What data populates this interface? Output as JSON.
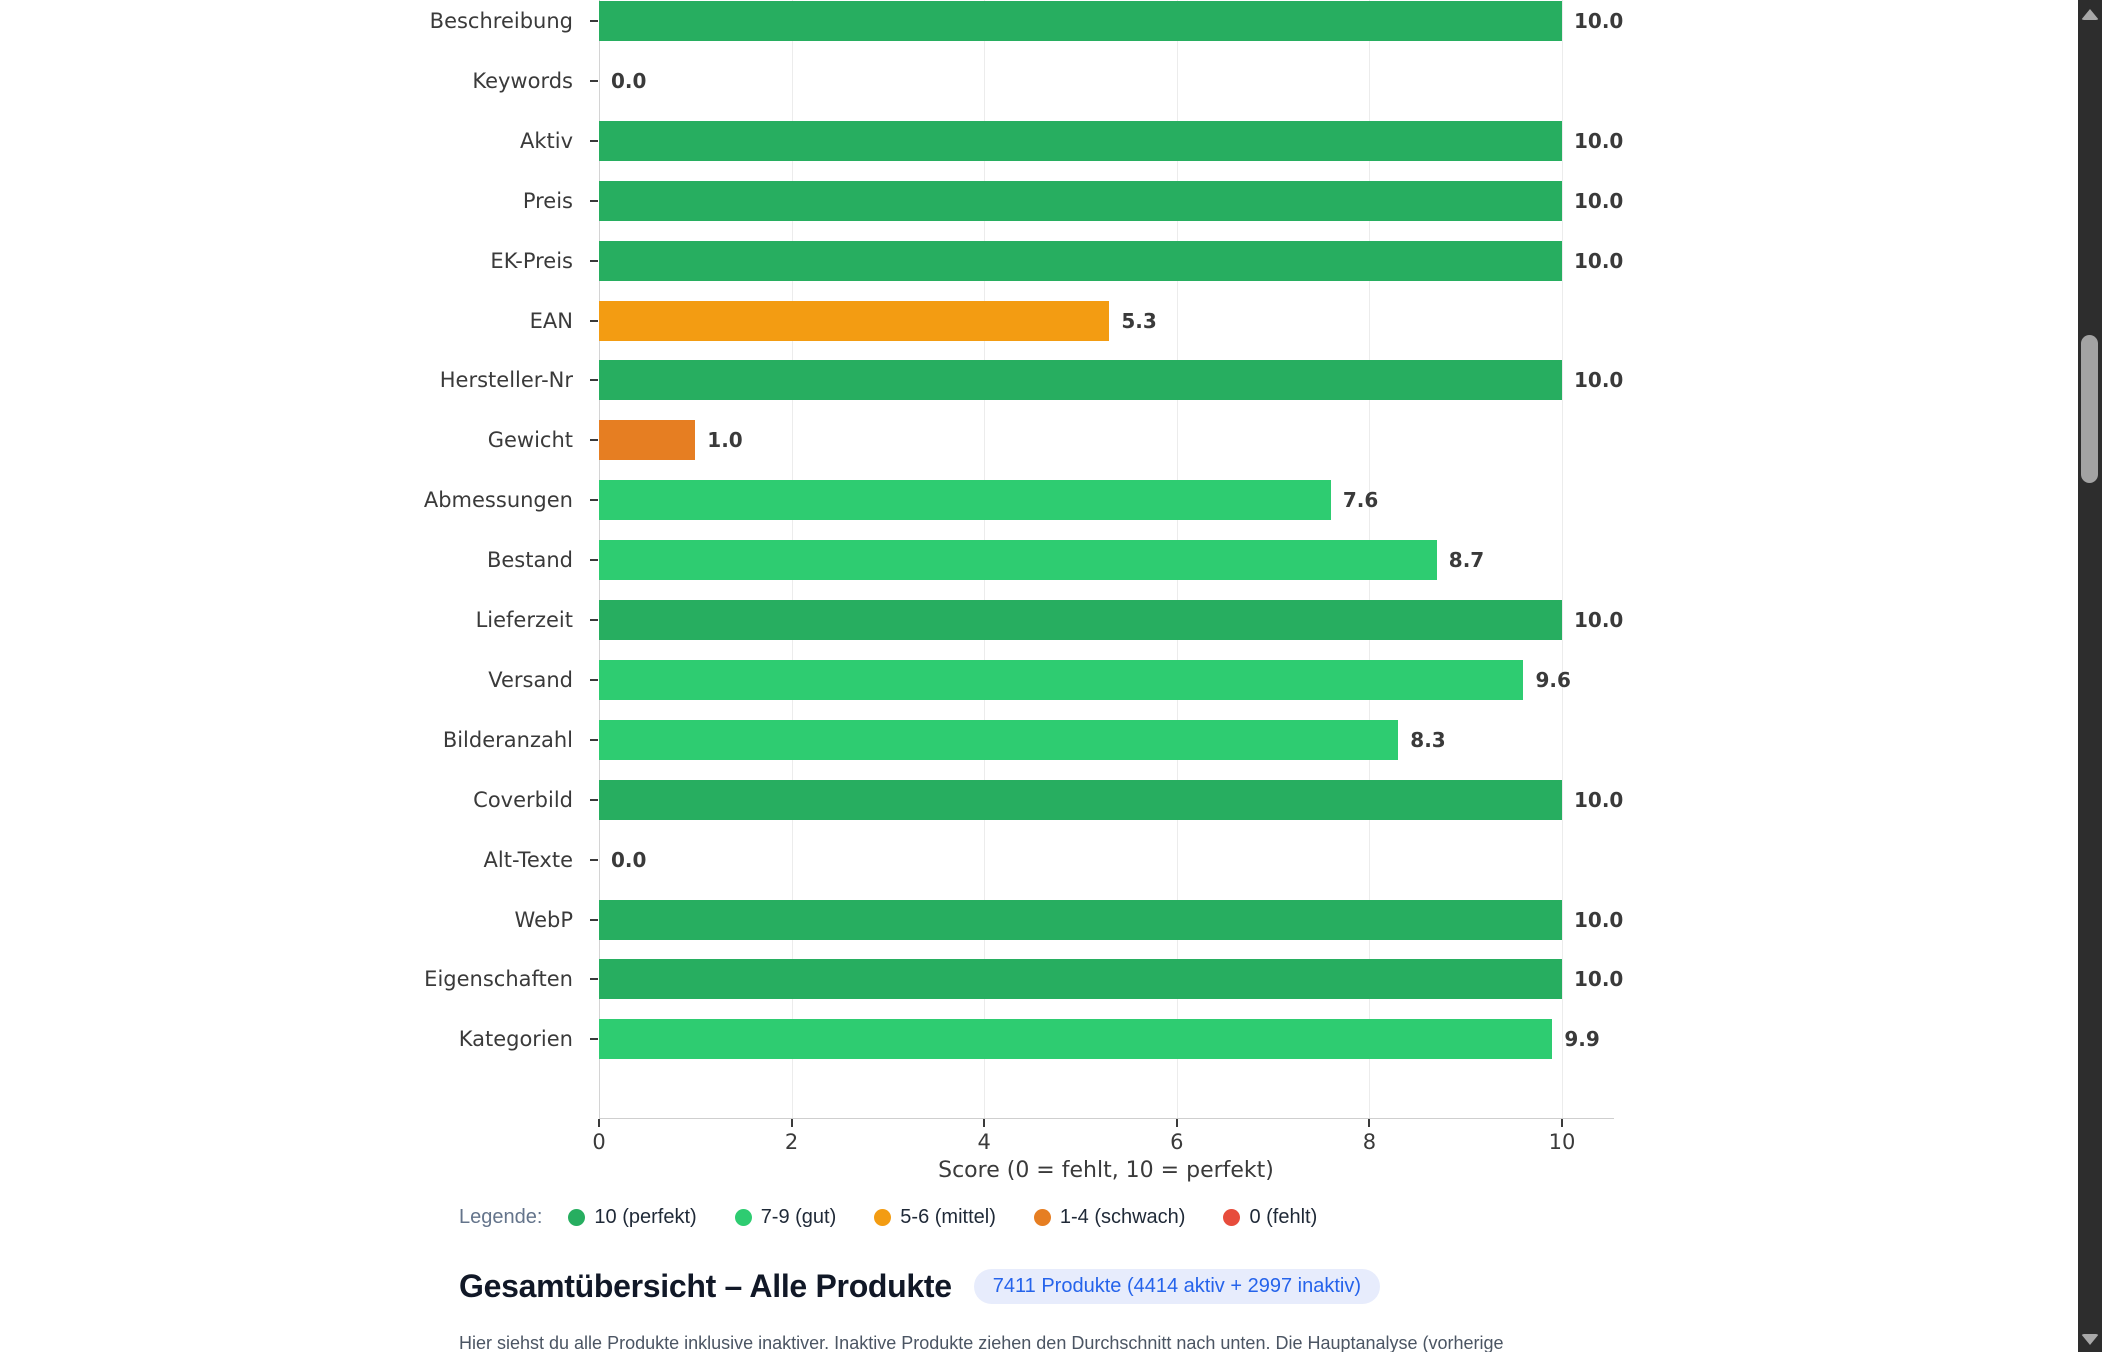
{
  "chart_data": {
    "type": "bar",
    "orientation": "horizontal",
    "categories": [
      "Beschreibung",
      "Keywords",
      "Aktiv",
      "Preis",
      "EK-Preis",
      "EAN",
      "Hersteller-Nr",
      "Gewicht",
      "Abmessungen",
      "Bestand",
      "Lieferzeit",
      "Versand",
      "Bilderanzahl",
      "Coverbild",
      "Alt-Texte",
      "WebP",
      "Eigenschaften",
      "Kategorien"
    ],
    "values": [
      10.0,
      0.0,
      10.0,
      10.0,
      10.0,
      5.3,
      10.0,
      1.0,
      7.6,
      8.7,
      10.0,
      9.6,
      8.3,
      10.0,
      0.0,
      10.0,
      10.0,
      9.9
    ],
    "value_labels": [
      "10.0",
      "0.0",
      "10.0",
      "10.0",
      "10.0",
      "5.3",
      "10.0",
      "1.0",
      "7.6",
      "8.7",
      "10.0",
      "9.6",
      "8.3",
      "10.0",
      "0.0",
      "10.0",
      "10.0",
      "9.9"
    ],
    "xlabel": "Score (0 = fehlt, 10 = perfekt)",
    "xticks": [
      0,
      2,
      4,
      6,
      8,
      10
    ],
    "xlim": [
      0,
      10.53
    ],
    "grid": "vertical",
    "legend_position": "below"
  },
  "palette": {
    "perfekt": "#27ae60",
    "gut": "#2ecc71",
    "mittel": "#f39c12",
    "schwach": "#e67e22",
    "fehlt": "#e74c3c"
  },
  "legend": {
    "label": "Legende:",
    "items": [
      {
        "text": "10 (perfekt)",
        "color": "#27ae60"
      },
      {
        "text": "7-9 (gut)",
        "color": "#2ecc71"
      },
      {
        "text": "5-6 (mittel)",
        "color": "#f39c12"
      },
      {
        "text": "1-4 (schwach)",
        "color": "#e67e22"
      },
      {
        "text": "0 (fehlt)",
        "color": "#e74c3c"
      }
    ]
  },
  "section": {
    "title": "Gesamtübersicht – Alle Produkte",
    "badge": "7411 Produkte (4414 aktiv + 2997 inaktiv)",
    "description": "Hier siehst du alle Produkte inklusive inaktiver. Inaktive Produkte ziehen den Durchschnitt nach unten. Die Hauptanalyse (vorherige"
  }
}
